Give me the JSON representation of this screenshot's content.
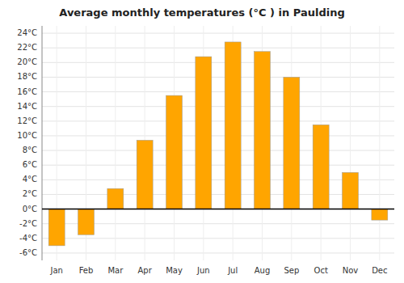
{
  "chart_data": {
    "type": "bar",
    "title": "Average monthly temperatures (°C ) in Paulding",
    "categories": [
      "Jan",
      "Feb",
      "Mar",
      "Apr",
      "May",
      "Jun",
      "Jul",
      "Aug",
      "Sep",
      "Oct",
      "Nov",
      "Dec"
    ],
    "values": [
      -5.0,
      -3.5,
      2.8,
      9.4,
      15.5,
      20.8,
      22.8,
      21.5,
      18.0,
      11.5,
      5.0,
      -1.5
    ],
    "color": "#FFA500",
    "ylim": [
      -7,
      25
    ],
    "yticks": [
      {
        "value": -6,
        "label": "-6°C"
      },
      {
        "value": -4,
        "label": "-4°C"
      },
      {
        "value": -2,
        "label": "-2°C"
      },
      {
        "value": 0,
        "label": "0°C"
      },
      {
        "value": 2,
        "label": "2°C"
      },
      {
        "value": 4,
        "label": "4°C"
      },
      {
        "value": 6,
        "label": "6°C"
      },
      {
        "value": 8,
        "label": "8°C"
      },
      {
        "value": 10,
        "label": "10°C"
      },
      {
        "value": 12,
        "label": "12°C"
      },
      {
        "value": 14,
        "label": "14°C"
      },
      {
        "value": 16,
        "label": "16°C"
      },
      {
        "value": 18,
        "label": "18°C"
      },
      {
        "value": 20,
        "label": "20°C"
      },
      {
        "value": 22,
        "label": "22°C"
      },
      {
        "value": 24,
        "label": "24°C"
      }
    ],
    "grid": true
  }
}
